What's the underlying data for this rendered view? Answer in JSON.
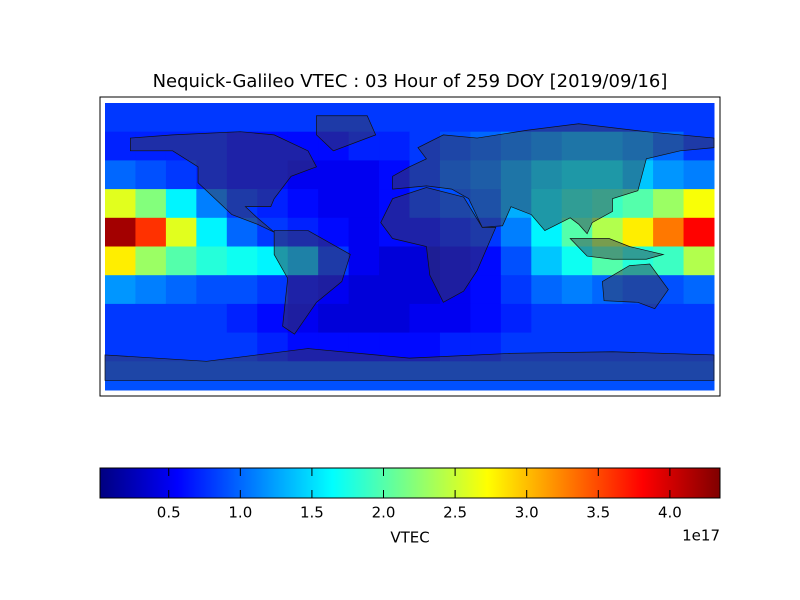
{
  "chart_data": {
    "type": "heatmap",
    "title": "Nequick-Galileo VTEC : 03 Hour of 259 DOY [2019/09/16]",
    "colormap": "jet",
    "values": [
      [
        0.8,
        0.8,
        0.8,
        0.8,
        0.8,
        0.8,
        0.8,
        0.8,
        0.8,
        0.8,
        0.8,
        0.8,
        0.8,
        0.8,
        0.8,
        0.8,
        0.8,
        0.8,
        0.8,
        0.8
      ],
      [
        0.7,
        0.7,
        0.7,
        0.7,
        0.6,
        0.6,
        0.6,
        0.6,
        0.7,
        0.7,
        0.8,
        0.9,
        1.0,
        1.1,
        1.2,
        1.3,
        1.3,
        1.2,
        1.0,
        0.8
      ],
      [
        1.0,
        0.9,
        0.8,
        0.7,
        0.6,
        0.6,
        0.5,
        0.5,
        0.5,
        0.6,
        0.8,
        1.0,
        1.1,
        1.3,
        1.5,
        1.6,
        1.6,
        1.4,
        1.2,
        1.1
      ],
      [
        2.6,
        2.2,
        1.6,
        1.1,
        0.8,
        0.7,
        0.6,
        0.5,
        0.5,
        0.6,
        0.8,
        0.9,
        1.0,
        1.3,
        1.6,
        1.8,
        1.9,
        2.0,
        2.3,
        2.7
      ],
      [
        4.2,
        3.6,
        2.6,
        1.6,
        1.0,
        0.8,
        0.7,
        0.6,
        0.5,
        0.6,
        0.6,
        0.7,
        0.8,
        1.1,
        1.6,
        2.0,
        2.4,
        2.8,
        3.3,
        3.8
      ],
      [
        2.8,
        2.3,
        2.0,
        1.8,
        1.7,
        1.6,
        1.4,
        0.8,
        0.5,
        0.4,
        0.4,
        0.5,
        0.6,
        0.9,
        1.4,
        1.7,
        2.0,
        1.8,
        1.9,
        2.4
      ],
      [
        1.2,
        1.1,
        1.0,
        0.9,
        0.9,
        0.8,
        0.6,
        0.5,
        0.4,
        0.4,
        0.4,
        0.5,
        0.6,
        0.8,
        1.0,
        1.1,
        1.0,
        0.9,
        0.9,
        1.0
      ],
      [
        0.8,
        0.8,
        0.8,
        0.8,
        0.7,
        0.6,
        0.5,
        0.4,
        0.4,
        0.4,
        0.5,
        0.5,
        0.6,
        0.7,
        0.8,
        0.8,
        0.8,
        0.8,
        0.8,
        0.8
      ],
      [
        0.8,
        0.8,
        0.8,
        0.8,
        0.8,
        0.7,
        0.6,
        0.6,
        0.6,
        0.6,
        0.6,
        0.7,
        0.7,
        0.8,
        0.8,
        0.8,
        0.8,
        0.8,
        0.8,
        0.8
      ],
      [
        0.9,
        0.9,
        0.9,
        0.9,
        0.9,
        0.9,
        0.9,
        0.9,
        0.9,
        0.9,
        0.9,
        0.9,
        0.9,
        0.9,
        0.9,
        0.9,
        0.9,
        0.9,
        0.9,
        0.9
      ]
    ],
    "colorbar": {
      "label": "VTEC",
      "offset_label": "1e17",
      "clim": [
        0.02,
        4.35
      ],
      "ticks": [
        0.5,
        {
          "value": 1,
          "label": "1.0"
        },
        1.5,
        {
          "value": 2,
          "label": "2.0"
        },
        2.5,
        {
          "value": 3,
          "label": "3.0"
        },
        3.5,
        {
          "value": 4,
          "label": "4.0"
        }
      ]
    }
  }
}
